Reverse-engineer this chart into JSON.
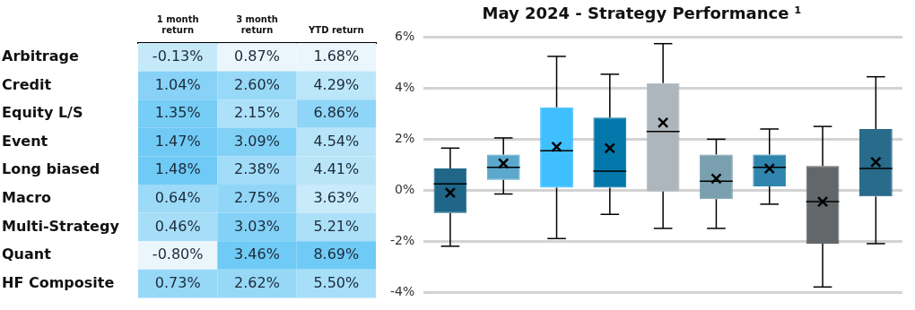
{
  "chart_data": [
    {
      "type": "heatmap",
      "categories": [
        "1 month return",
        "3 month return",
        "YTD return"
      ],
      "y_categories": [
        "Arbitrage",
        "Credit",
        "Equity L/S",
        "Event",
        "Long biased",
        "Macro",
        "Multi-Strategy",
        "Quant",
        "HF Composite"
      ],
      "cells": [
        [
          -0.13,
          0.87,
          1.68
        ],
        [
          1.04,
          2.6,
          4.29
        ],
        [
          1.35,
          2.15,
          6.86
        ],
        [
          1.47,
          3.09,
          4.54
        ],
        [
          1.48,
          2.38,
          4.41
        ],
        [
          0.64,
          2.75,
          3.63
        ],
        [
          0.46,
          3.03,
          5.21
        ],
        [
          -0.8,
          3.46,
          8.69
        ],
        [
          0.73,
          2.62,
          5.5
        ]
      ],
      "cell_labels": [
        [
          "-0.13%",
          "0.87%",
          "1.68%"
        ],
        [
          "1.04%",
          "2.60%",
          "4.29%"
        ],
        [
          "1.35%",
          "2.15%",
          "6.86%"
        ],
        [
          "1.47%",
          "3.09%",
          "4.54%"
        ],
        [
          "1.48%",
          "2.38%",
          "4.41%"
        ],
        [
          "0.64%",
          "2.75%",
          "3.63%"
        ],
        [
          "0.46%",
          "3.03%",
          "5.21%"
        ],
        [
          "-0.80%",
          "3.46%",
          "8.69%"
        ],
        [
          "0.73%",
          "2.62%",
          "5.50%"
        ]
      ]
    },
    {
      "type": "box",
      "title": "May 2024 - Strategy Performance ¹",
      "categories": [
        null,
        null,
        null,
        null,
        null,
        null,
        null,
        null,
        null
      ],
      "colors": [
        "#1f6688",
        "#5ba8cc",
        "#40bfff",
        "#0477aa",
        "#aeb6bd",
        "#7a9fae",
        "#2f85ad",
        "#636769",
        "#286b8a"
      ],
      "boxes": [
        {
          "low": -2.2,
          "q1": -0.9,
          "median": 0.25,
          "q3": 0.85,
          "high": 1.65,
          "mean": -0.1
        },
        {
          "low": -0.15,
          "q1": 0.4,
          "median": 0.9,
          "q3": 1.4,
          "high": 2.05,
          "mean": 1.05
        },
        {
          "low": -1.9,
          "q1": 0.1,
          "median": 1.55,
          "q3": 3.25,
          "high": 5.25,
          "mean": 1.7
        },
        {
          "low": -0.95,
          "q1": 0.1,
          "median": 0.75,
          "q3": 2.85,
          "high": 4.55,
          "mean": 1.65
        },
        {
          "low": -1.5,
          "q1": -0.05,
          "median": 2.3,
          "q3": 4.2,
          "high": 5.75,
          "mean": 2.65
        },
        {
          "low": -1.5,
          "q1": -0.35,
          "median": 0.35,
          "q3": 1.4,
          "high": 2.0,
          "mean": 0.45
        },
        {
          "low": -0.55,
          "q1": 0.15,
          "median": 0.9,
          "q3": 1.4,
          "high": 2.4,
          "mean": 0.85
        },
        {
          "low": -3.8,
          "q1": -2.1,
          "median": -0.45,
          "q3": 0.95,
          "high": 2.5,
          "mean": -0.45
        },
        {
          "low": -2.1,
          "q1": -0.25,
          "median": 0.85,
          "q3": 2.4,
          "high": 4.45,
          "mean": 1.1
        }
      ],
      "ylim": [
        -4,
        6
      ],
      "yticks": [
        {
          "value": -4,
          "label": "-4%"
        },
        {
          "value": -2,
          "label": "-2%"
        },
        {
          "value": 0,
          "label": "0%"
        },
        {
          "value": 2,
          "label": "2%"
        },
        {
          "value": 4,
          "label": "4%"
        },
        {
          "value": 6,
          "label": "6%"
        }
      ],
      "grid": "y",
      "legend": false,
      "tick_labels": "y"
    }
  ]
}
